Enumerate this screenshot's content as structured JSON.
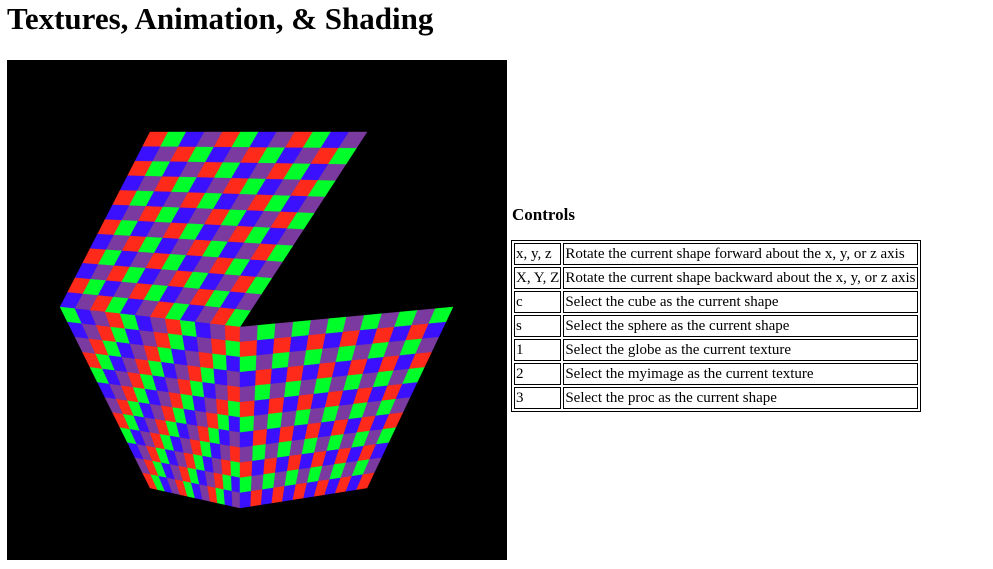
{
  "page": {
    "title": "Textures, Animation, & Shading"
  },
  "canvas": {
    "palette": [
      "#ff2a1a",
      "#00ff2a",
      "#3a10ff",
      "#7a3aa0"
    ],
    "background": "#000000"
  },
  "controls": {
    "heading": "Controls",
    "rows": [
      {
        "key": "x, y, z",
        "description": "Rotate the current shape forward about the x, y, or z axis"
      },
      {
        "key": "X, Y, Z",
        "description": "Rotate the current shape backward about the x, y, or z axis"
      },
      {
        "key": "c",
        "description": "Select the cube as the current shape"
      },
      {
        "key": "s",
        "description": "Select the sphere as the current shape"
      },
      {
        "key": "1",
        "description": "Select the globe as the current texture"
      },
      {
        "key": "2",
        "description": "Select the myimage as the current texture"
      },
      {
        "key": "3",
        "description": "Select the proc as the current shape"
      }
    ]
  }
}
